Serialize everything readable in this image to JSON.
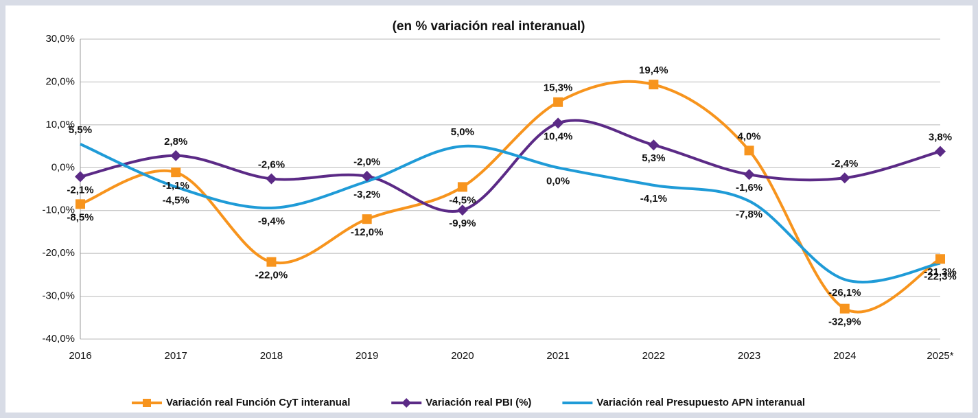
{
  "chart_data": {
    "type": "line",
    "title": "(en % variación real interanual)",
    "categories": [
      "2016",
      "2017",
      "2018",
      "2019",
      "2020",
      "2021",
      "2022",
      "2023",
      "2024",
      "2025*"
    ],
    "ylim": [
      -40,
      30
    ],
    "yticks": [
      {
        "value": -40,
        "label": "-40,0%"
      },
      {
        "value": -30,
        "label": "-30,0%"
      },
      {
        "value": -20,
        "label": "-20,0%"
      },
      {
        "value": -10,
        "label": "-10,0%"
      },
      {
        "value": 0,
        "label": "0,0%"
      },
      {
        "value": 10,
        "label": "10,0%"
      },
      {
        "value": 20,
        "label": "20,0%"
      },
      {
        "value": 30,
        "label": "30,0%"
      }
    ],
    "grid": true,
    "smooth": true,
    "legend": "bottom",
    "series": [
      {
        "name": "Variación real Función CyT interanual",
        "color": "#f7941d",
        "marker": "square",
        "values": [
          -8.5,
          -1.1,
          -22.0,
          -12.0,
          -4.5,
          15.3,
          19.4,
          4.0,
          -32.9,
          -21.3
        ],
        "value_labels": [
          "-8,5%",
          "-1,1%",
          "-22,0%",
          "-12,0%",
          "-4,5%",
          "15,3%",
          "19,4%",
          "4,0%",
          "-32,9%",
          "-21,3%"
        ]
      },
      {
        "name": "Variación real PBI (%)",
        "color": "#5b2a86",
        "marker": "diamond",
        "values": [
          -2.1,
          2.8,
          -2.6,
          -2.0,
          -9.9,
          10.4,
          5.3,
          -1.6,
          -2.4,
          3.8
        ],
        "value_labels": [
          "-2,1%",
          "2,8%",
          "-2,6%",
          "-2,0%",
          "-9,9%",
          "10,4%",
          "5,3%",
          "-1,6%",
          "-2,4%",
          "3,8%"
        ]
      },
      {
        "name": "Variación real Presupuesto APN interanual",
        "color": "#1f9bd7",
        "values": [
          5.5,
          -4.5,
          -9.4,
          -3.2,
          5.0,
          0.0,
          -4.1,
          -7.8,
          -26.1,
          -22.3
        ],
        "value_labels": [
          "5,5%",
          "-4,5%",
          "-9,4%",
          "-3,2%",
          "5,0%",
          "0,0%",
          "-4,1%",
          "-7,8%",
          "-26,1%",
          "-22,3%"
        ]
      }
    ]
  }
}
